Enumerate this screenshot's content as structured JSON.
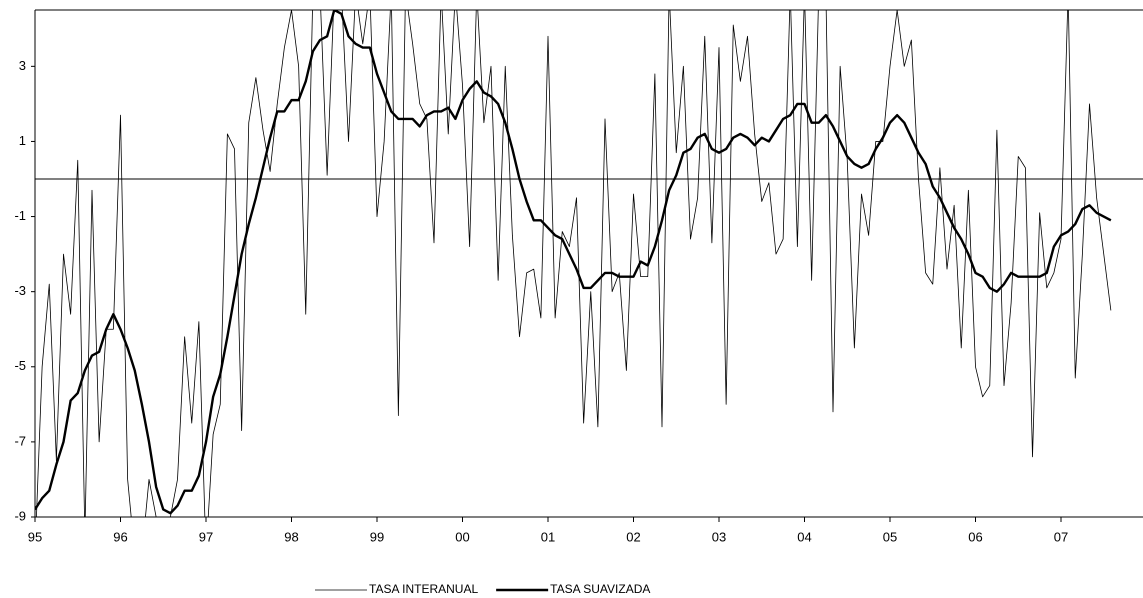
{
  "chart_data": {
    "type": "line",
    "categories": [
      "95",
      null,
      null,
      null,
      null,
      null,
      null,
      null,
      null,
      null,
      null,
      null,
      "96",
      null,
      null,
      null,
      null,
      null,
      null,
      null,
      null,
      null,
      null,
      null,
      "97",
      null,
      null,
      null,
      null,
      null,
      null,
      null,
      null,
      null,
      null,
      null,
      "98",
      null,
      null,
      null,
      null,
      null,
      null,
      null,
      null,
      null,
      null,
      null,
      "99",
      null,
      null,
      null,
      null,
      null,
      null,
      null,
      null,
      null,
      null,
      null,
      "00",
      null,
      null,
      null,
      null,
      null,
      null,
      null,
      null,
      null,
      null,
      null,
      "01",
      null,
      null,
      null,
      null,
      null,
      null,
      null,
      null,
      null,
      null,
      null,
      "02",
      null,
      null,
      null,
      null,
      null,
      null,
      null,
      null,
      null,
      null,
      null,
      "03",
      null,
      null,
      null,
      null,
      null,
      null,
      null,
      null,
      null,
      null,
      null,
      "04",
      null,
      null,
      null,
      null,
      null,
      null,
      null,
      null,
      null,
      null,
      null,
      "05",
      null,
      null,
      null,
      null,
      null,
      null,
      null,
      null,
      null,
      null,
      null,
      "06",
      null,
      null,
      null,
      null,
      null,
      null,
      null,
      null,
      null,
      null,
      null,
      "07",
      null,
      null,
      null,
      null,
      null,
      null,
      null
    ],
    "series": [
      {
        "name": "TASA INTERANUAL",
        "color": "#000000",
        "width": 0.8,
        "values": [
          -10,
          -5,
          -2.8,
          -7.5,
          -2,
          -3.6,
          0.5,
          -9.5,
          -0.3,
          -7,
          -4,
          -4,
          1.7,
          -8,
          -10,
          -10,
          -8,
          -9,
          -9.5,
          -9,
          -8,
          -4.2,
          -6.5,
          -3.8,
          -10,
          -6.8,
          -6,
          1.2,
          0.8,
          -6.7,
          1.5,
          2.7,
          1.3,
          0.2,
          2,
          3.5,
          4.5,
          3,
          -3.6,
          5,
          5,
          0.1,
          5,
          5,
          1,
          5,
          3.6,
          5,
          -1,
          1,
          5,
          -6.3,
          5,
          3.6,
          2,
          1.6,
          -1.7,
          5,
          1.2,
          5,
          2.5,
          -1.8,
          5,
          1.5,
          3,
          -2.7,
          3,
          -1.5,
          -4.2,
          -2.5,
          -2.4,
          -3.7,
          3.8,
          -3.7,
          -1.4,
          -1.8,
          -0.5,
          -6.5,
          -3,
          -6.6,
          1.6,
          -3,
          -2.5,
          -5.1,
          -0.4,
          -2.6,
          -2.6,
          2.8,
          -6.6,
          5,
          0.7,
          3,
          -1.6,
          -0.5,
          3.8,
          -1.7,
          3.5,
          -6,
          4.1,
          2.6,
          3.8,
          1.2,
          -0.6,
          -0.1,
          -2,
          -1.6,
          5,
          -1.8,
          5,
          -2.7,
          5,
          5,
          -6.2,
          3,
          0.5,
          -4.5,
          -0.4,
          -1.5,
          1,
          1,
          3,
          4.5,
          3,
          3.7,
          0,
          -2.5,
          -2.8,
          0.3,
          -2.4,
          -0.7,
          -4.5,
          -0.3,
          -5,
          -5.8,
          -5.5,
          1.3,
          -5.5,
          -3.3,
          0.6,
          0.3,
          -7.4,
          -0.9,
          -2.9,
          -2.5,
          -1.6,
          5,
          -5.3,
          -2,
          2,
          -0.5,
          -2,
          -3.5
        ]
      },
      {
        "name": "TASA SUAVIZADA",
        "color": "#000000",
        "width": 2.4,
        "values": [
          -8.8,
          -8.5,
          -8.3,
          -7.6,
          -7,
          -5.9,
          -5.7,
          -5.1,
          -4.7,
          -4.6,
          -4,
          -3.6,
          -4,
          -4.5,
          -5.1,
          -6,
          -7,
          -8.2,
          -8.8,
          -8.9,
          -8.7,
          -8.3,
          -8.3,
          -7.9,
          -7,
          -5.8,
          -5.2,
          -4.2,
          -3.1,
          -2,
          -1.2,
          -0.5,
          0.3,
          1.1,
          1.8,
          1.8,
          2.1,
          2.1,
          2.6,
          3.4,
          3.7,
          3.8,
          4.5,
          4.4,
          3.8,
          3.6,
          3.5,
          3.5,
          2.8,
          2.3,
          1.8,
          1.6,
          1.6,
          1.6,
          1.4,
          1.7,
          1.8,
          1.8,
          1.9,
          1.6,
          2.1,
          2.4,
          2.6,
          2.3,
          2.2,
          2.0,
          1.5,
          0.8,
          0,
          -0.6,
          -1.1,
          -1.1,
          -1.3,
          -1.5,
          -1.6,
          -2,
          -2.4,
          -2.9,
          -2.9,
          -2.7,
          -2.5,
          -2.5,
          -2.6,
          -2.6,
          -2.6,
          -2.2,
          -2.3,
          -1.8,
          -1.1,
          -0.3,
          0.1,
          0.7,
          0.8,
          1.1,
          1.2,
          0.8,
          0.7,
          0.8,
          1.1,
          1.2,
          1.1,
          0.9,
          1.1,
          1,
          1.3,
          1.6,
          1.7,
          2,
          2,
          1.5,
          1.5,
          1.7,
          1.4,
          1,
          0.6,
          0.4,
          0.3,
          0.4,
          0.8,
          1.1,
          1.5,
          1.7,
          1.5,
          1.1,
          0.7,
          0.4,
          -0.2,
          -0.5,
          -0.9,
          -1.3,
          -1.6,
          -2,
          -2.5,
          -2.6,
          -2.9,
          -3,
          -2.8,
          -2.5,
          -2.6,
          -2.6,
          -2.6,
          -2.6,
          -2.5,
          -1.8,
          -1.5,
          -1.4,
          -1.2,
          -0.8,
          -0.7,
          -0.9,
          -1,
          -1.1
        ]
      }
    ],
    "ylim": [
      -9,
      4.5
    ],
    "yticks": [
      3,
      1,
      -1,
      -3,
      -5,
      -7,
      -9
    ],
    "legend": "bottom"
  }
}
